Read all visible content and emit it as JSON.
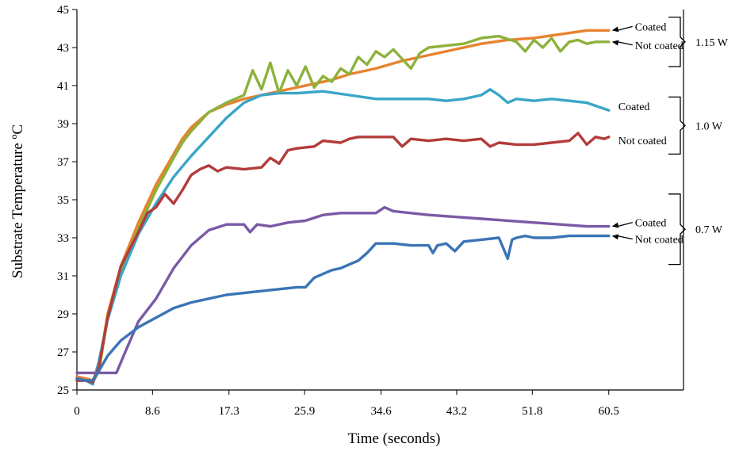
{
  "chart_data": {
    "type": "line",
    "xlabel": "Time (seconds)",
    "ylabel": "Substrate Temperature ºC",
    "xlim": [
      0,
      69
    ],
    "ylim": [
      25,
      45
    ],
    "x_ticks": [
      "0",
      "8.6",
      "17.3",
      "25.9",
      "34.6",
      "43.2",
      "51.8",
      "60.5"
    ],
    "x_tick_values": [
      0,
      8.6,
      17.3,
      25.9,
      34.6,
      43.2,
      51.8,
      60.5
    ],
    "y_ticks": [
      "25",
      "27",
      "29",
      "31",
      "33",
      "35",
      "37",
      "39",
      "41",
      "43",
      "45"
    ],
    "y_tick_values": [
      25,
      27,
      29,
      31,
      33,
      35,
      37,
      39,
      41,
      43,
      45
    ],
    "grid": false,
    "series": [
      {
        "color": "#e8822e",
        "x": [
          0,
          1,
          1.8,
          2.5,
          3.5,
          5,
          7,
          9,
          11,
          12,
          13,
          14,
          15,
          17,
          19,
          21,
          23,
          25,
          27,
          29,
          31,
          34,
          37,
          40,
          43,
          46,
          49,
          52,
          55,
          58,
          60.5
        ],
        "y": [
          25.7,
          25.6,
          25.5,
          26.2,
          29.0,
          31.5,
          33.8,
          35.8,
          37.4,
          38.2,
          38.8,
          39.2,
          39.6,
          40.0,
          40.3,
          40.5,
          40.7,
          40.9,
          41.1,
          41.3,
          41.6,
          41.9,
          42.3,
          42.6,
          42.9,
          43.2,
          43.4,
          43.5,
          43.7,
          43.9,
          43.9
        ]
      },
      {
        "color": "#8db23b",
        "x": [
          0,
          1,
          1.8,
          2.5,
          3.5,
          5,
          7,
          9,
          11,
          12,
          13,
          14,
          15,
          17,
          19,
          20,
          21,
          22,
          23,
          24,
          25,
          26,
          27,
          28,
          29,
          30,
          31,
          32,
          33,
          34,
          35,
          36,
          37,
          38,
          39,
          40,
          42,
          44,
          46,
          48,
          50,
          51,
          52,
          53,
          54,
          55,
          56,
          57,
          58,
          59,
          60.5
        ],
        "y": [
          25.5,
          25.5,
          25.4,
          26.0,
          28.8,
          31.3,
          33.5,
          35.5,
          37.2,
          38.0,
          38.6,
          39.1,
          39.6,
          40.1,
          40.5,
          41.8,
          40.8,
          42.2,
          40.6,
          41.8,
          41.0,
          42.0,
          40.9,
          41.5,
          41.2,
          41.9,
          41.6,
          42.5,
          42.1,
          42.8,
          42.5,
          42.9,
          42.4,
          41.9,
          42.7,
          43.0,
          43.1,
          43.2,
          43.5,
          43.6,
          43.3,
          42.8,
          43.4,
          43.0,
          43.5,
          42.8,
          43.3,
          43.4,
          43.2,
          43.3,
          43.3
        ]
      },
      {
        "color": "#3aa5c7",
        "x": [
          0,
          1,
          1.8,
          2.5,
          3.5,
          5,
          7,
          9,
          11,
          13,
          15,
          17,
          19,
          21,
          23,
          25,
          28,
          31,
          34,
          37,
          40,
          42,
          44,
          46,
          47,
          48,
          49,
          50,
          52,
          54,
          56,
          58,
          60.5
        ],
        "y": [
          25.5,
          25.5,
          25.3,
          26.5,
          28.7,
          31.0,
          33.2,
          34.8,
          36.2,
          37.3,
          38.3,
          39.3,
          40.1,
          40.5,
          40.6,
          40.6,
          40.7,
          40.5,
          40.3,
          40.3,
          40.3,
          40.2,
          40.3,
          40.5,
          40.8,
          40.5,
          40.1,
          40.3,
          40.2,
          40.3,
          40.2,
          40.1,
          39.7
        ]
      },
      {
        "color": "#b33c3a",
        "x": [
          0,
          1,
          1.8,
          2.5,
          3.5,
          5,
          7,
          8,
          9,
          10,
          11,
          12,
          13,
          14,
          15,
          16,
          17,
          19,
          21,
          22,
          23,
          24,
          25,
          27,
          28,
          30,
          31,
          32,
          34,
          36,
          37,
          38,
          40,
          42,
          44,
          46,
          47,
          48,
          50,
          52,
          54,
          56,
          57,
          58,
          59,
          60,
          60.5
        ],
        "y": [
          25.5,
          25.5,
          25.4,
          26.2,
          28.8,
          31.5,
          33.3,
          34.3,
          34.6,
          35.3,
          34.8,
          35.5,
          36.3,
          36.6,
          36.8,
          36.5,
          36.7,
          36.6,
          36.7,
          37.2,
          36.9,
          37.6,
          37.7,
          37.8,
          38.1,
          38.0,
          38.2,
          38.3,
          38.3,
          38.3,
          37.8,
          38.2,
          38.1,
          38.2,
          38.1,
          38.2,
          37.8,
          38.0,
          37.9,
          37.9,
          38.0,
          38.1,
          38.5,
          37.9,
          38.3,
          38.2,
          38.3
        ]
      },
      {
        "color": "#7a5aa6",
        "x": [
          0,
          1,
          2,
          3,
          4.5,
          5.5,
          7,
          9,
          11,
          13,
          15,
          17,
          19,
          19.7,
          20.5,
          22,
          24,
          26,
          28,
          30,
          32,
          34,
          35,
          36,
          38,
          40,
          43,
          46,
          49,
          52,
          55,
          58,
          60.5
        ],
        "y": [
          25.9,
          25.9,
          25.9,
          25.9,
          25.9,
          27.0,
          28.6,
          29.8,
          31.4,
          32.6,
          33.4,
          33.7,
          33.7,
          33.3,
          33.7,
          33.6,
          33.8,
          33.9,
          34.2,
          34.3,
          34.3,
          34.3,
          34.6,
          34.4,
          34.3,
          34.2,
          34.1,
          34.0,
          33.9,
          33.8,
          33.7,
          33.6,
          33.6
        ]
      },
      {
        "color": "#3a74b5",
        "x": [
          0,
          1,
          1.8,
          2.5,
          3.5,
          5,
          7,
          9,
          11,
          13,
          15,
          17,
          19,
          21,
          23,
          25,
          26,
          27,
          28,
          29,
          30,
          31,
          32,
          33,
          34,
          36,
          38,
          40,
          40.5,
          41,
          42,
          43,
          44,
          46,
          48,
          49,
          49.5,
          50,
          51,
          52,
          54,
          56,
          58,
          60.5
        ],
        "y": [
          25.6,
          25.5,
          25.5,
          26.0,
          26.8,
          27.6,
          28.3,
          28.8,
          29.3,
          29.6,
          29.8,
          30.0,
          30.1,
          30.2,
          30.3,
          30.4,
          30.4,
          30.9,
          31.1,
          31.3,
          31.4,
          31.6,
          31.8,
          32.2,
          32.7,
          32.7,
          32.6,
          32.6,
          32.2,
          32.6,
          32.7,
          32.3,
          32.8,
          32.9,
          33.0,
          31.9,
          32.9,
          33.0,
          33.1,
          33.0,
          33.0,
          33.1,
          33.1,
          33.1
        ]
      }
    ],
    "annotations": [
      {
        "text": "Coated",
        "y": 43.9,
        "arrow": true
      },
      {
        "text": "Not coated",
        "y": 43.3,
        "arrow": true
      },
      {
        "text": "Coated",
        "y": 39.7,
        "arrow": false
      },
      {
        "text": "Not coated",
        "y": 38.3,
        "arrow": false
      },
      {
        "text": "Coated",
        "y": 33.6,
        "arrow": true
      },
      {
        "text": "Not coated",
        "y": 33.1,
        "arrow": true
      }
    ],
    "power_groups": [
      {
        "label": "1.15 W",
        "y_top": 44.6,
        "y_bottom": 42.0
      },
      {
        "label": "1.0 W",
        "y_top": 40.4,
        "y_bottom": 37.4
      },
      {
        "label": "0.7 W",
        "y_top": 35.3,
        "y_bottom": 31.6
      }
    ]
  }
}
